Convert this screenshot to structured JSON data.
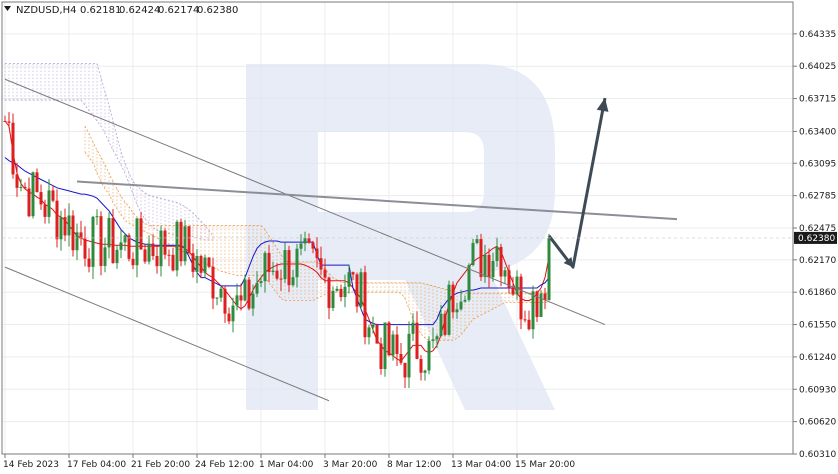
{
  "header": {
    "symbol": "NZDUSD,H4",
    "open": "0.62181",
    "high": "0.62424",
    "low": "0.62174",
    "close": "0.62380",
    "menu_icon": "triangle-down-icon"
  },
  "colors": {
    "bull": "#2e8b3d",
    "bear": "#dd1f1f",
    "tenkan": "#e01010",
    "kijun": "#1515d0",
    "kumo_bull": "#e88a2e",
    "kumo_bear": "#a890d0",
    "trendline": "#7a7a7a",
    "resistance": "#8a8f96",
    "arrow": "#3e4a56",
    "price_tag": "#1a1a1a"
  },
  "chart_data": {
    "type": "candlestick",
    "symbol": "NZDUSD",
    "timeframe": "H4",
    "y_ticks": [
      "0.64335",
      "0.64025",
      "0.63715",
      "0.63400",
      "0.63095",
      "0.62785",
      "0.62475",
      "0.62170",
      "0.61860",
      "0.61550",
      "0.61240",
      "0.60930",
      "0.60620",
      "0.60310"
    ],
    "ylim": [
      0.6031,
      0.6464
    ],
    "x_ticks": [
      {
        "label": "14 Feb 2023",
        "index": 0
      },
      {
        "label": "17 Feb 04:00",
        "index": 16
      },
      {
        "label": "21 Feb 20:00",
        "index": 32
      },
      {
        "label": "24 Feb 12:00",
        "index": 48
      },
      {
        "label": "1 Mar 04:00",
        "index": 64
      },
      {
        "label": "3 Mar 20:00",
        "index": 80
      },
      {
        "label": "8 Mar 12:00",
        "index": 96
      },
      {
        "label": "13 Mar 04:00",
        "index": 112
      },
      {
        "label": "15 Mar 20:00",
        "index": 128
      }
    ],
    "current_price": "0.62380",
    "candle_count": 137,
    "series": [
      {
        "name": "Tenkan-sen",
        "values": [
          0.635,
          0.6345,
          0.632,
          0.63,
          0.629,
          0.6285,
          0.6282,
          0.628,
          0.6277,
          0.6275,
          0.627,
          0.6268,
          0.6265,
          0.626,
          0.6258,
          0.6255,
          0.625,
          0.6245,
          0.624,
          0.6238,
          0.6236,
          0.6235,
          0.6234,
          0.6233,
          0.6232,
          0.6232,
          0.6232,
          0.6231,
          0.6231,
          0.6231,
          0.6231,
          0.623,
          0.623,
          0.623,
          0.623,
          0.623,
          0.623,
          0.623,
          0.623,
          0.623,
          0.623,
          0.623,
          0.623,
          0.623,
          0.623,
          0.6228,
          0.6225,
          0.622,
          0.6215,
          0.621,
          0.6205,
          0.6202,
          0.62,
          0.6196,
          0.6192,
          0.6188,
          0.6183,
          0.6178,
          0.6173,
          0.617,
          0.6173,
          0.618,
          0.6188,
          0.6195,
          0.62,
          0.6205,
          0.6208,
          0.621,
          0.6212,
          0.6213,
          0.6213,
          0.6213,
          0.6213,
          0.6213,
          0.6213,
          0.6212,
          0.621,
          0.6208,
          0.6205,
          0.62,
          0.6197,
          0.6197,
          0.6197,
          0.6197,
          0.6197,
          0.6197,
          0.6195,
          0.619,
          0.6185,
          0.618,
          0.617,
          0.616,
          0.615,
          0.614,
          0.6135,
          0.613,
          0.6128,
          0.6125,
          0.6122,
          0.612,
          0.6125,
          0.613,
          0.6135,
          0.6135,
          0.6135,
          0.613,
          0.6128,
          0.613,
          0.6135,
          0.6145,
          0.616,
          0.6175,
          0.6185,
          0.6195,
          0.62,
          0.6205,
          0.621,
          0.6215,
          0.6218,
          0.622,
          0.6222,
          0.6225,
          0.6228,
          0.623,
          0.6225,
          0.6215,
          0.6205,
          0.6195,
          0.6185,
          0.618,
          0.6178,
          0.6178,
          0.618,
          0.6185,
          0.619,
          0.62,
          0.622
        ]
      },
      {
        "name": "Kijun-sen",
        "values": [
          0.6315,
          0.6312,
          0.631,
          0.6308,
          0.6305,
          0.6302,
          0.63,
          0.6298,
          0.6296,
          0.6294,
          0.6292,
          0.629,
          0.6288,
          0.6286,
          0.6285,
          0.6284,
          0.6283,
          0.6282,
          0.6281,
          0.628,
          0.628,
          0.6279,
          0.6278,
          0.6276,
          0.6272,
          0.6268,
          0.6264,
          0.6258,
          0.6252,
          0.6246,
          0.6242,
          0.6238,
          0.6236,
          0.6234,
          0.6233,
          0.6232,
          0.6232,
          0.6231,
          0.6231,
          0.6231,
          0.6231,
          0.6231,
          0.6231,
          0.6231,
          0.6231,
          0.6228,
          0.622,
          0.6212,
          0.6205,
          0.62,
          0.62,
          0.6198,
          0.6196,
          0.6194,
          0.6192,
          0.6192,
          0.6192,
          0.6192,
          0.6192,
          0.6192,
          0.62,
          0.621,
          0.622,
          0.6228,
          0.6232,
          0.6234,
          0.6235,
          0.6235,
          0.6235,
          0.6234,
          0.6234,
          0.6234,
          0.6234,
          0.6234,
          0.6234,
          0.6234,
          0.6234,
          0.6234,
          0.6222,
          0.6212,
          0.6212,
          0.6212,
          0.6212,
          0.6212,
          0.6212,
          0.6212,
          0.6212,
          0.619,
          0.618,
          0.617,
          0.616,
          0.6158,
          0.6156,
          0.6155,
          0.6155,
          0.6155,
          0.6155,
          0.6155,
          0.6155,
          0.6155,
          0.6155,
          0.6155,
          0.6155,
          0.6155,
          0.6155,
          0.6155,
          0.6155,
          0.6155,
          0.616,
          0.617,
          0.6175,
          0.618,
          0.6183,
          0.6185,
          0.6186,
          0.6187,
          0.6188,
          0.6188,
          0.6189,
          0.619,
          0.619,
          0.619,
          0.619,
          0.619,
          0.619,
          0.619,
          0.619,
          0.619,
          0.619,
          0.619,
          0.619,
          0.619,
          0.619,
          0.619,
          0.6193,
          0.6195,
          0.62
        ]
      }
    ],
    "kumo_clouds": [
      {
        "name": "Kumo (bearish)",
        "color": "kumo_bear",
        "start_index": 0,
        "upper": [
          0.6405,
          0.6405,
          0.6405,
          0.6405,
          0.6405,
          0.6405,
          0.6405,
          0.6405,
          0.6405,
          0.6405,
          0.6405,
          0.6405,
          0.6405,
          0.6405,
          0.6405,
          0.6405,
          0.6405,
          0.6405,
          0.6405,
          0.6405,
          0.6405,
          0.6405,
          0.6405,
          0.6405,
          0.6392,
          0.6378,
          0.6365,
          0.635,
          0.6335,
          0.632,
          0.631,
          0.63,
          0.6292,
          0.6288,
          0.6284,
          0.6281,
          0.6279,
          0.6278,
          0.6277,
          0.6276,
          0.6275,
          0.6274,
          0.6273,
          0.6272,
          0.627,
          0.6268,
          0.6265,
          0.6262,
          0.6258,
          0.6254,
          0.625,
          0.6245,
          0.624
        ],
        "lower": [
          0.637,
          0.637,
          0.637,
          0.637,
          0.637,
          0.637,
          0.637,
          0.637,
          0.637,
          0.637,
          0.637,
          0.637,
          0.637,
          0.637,
          0.637,
          0.637,
          0.637,
          0.637,
          0.637,
          0.637,
          0.6365,
          0.636,
          0.6355,
          0.635,
          0.6345,
          0.6338,
          0.633,
          0.6322,
          0.6315,
          0.6308,
          0.63,
          0.629,
          0.628,
          0.627,
          0.6262,
          0.6256,
          0.6252,
          0.6248,
          0.6245,
          0.6244,
          0.6243,
          0.6242,
          0.6241,
          0.624,
          0.624,
          0.624,
          0.624,
          0.6239,
          0.6238,
          0.6237,
          0.6236,
          0.6236,
          0.6236
        ]
      },
      {
        "name": "Kumo (bullish)",
        "color": "kumo_bull",
        "start_index": 20,
        "upper": [
          0.6345,
          0.6338,
          0.633,
          0.6322,
          0.6315,
          0.6308,
          0.63,
          0.6292,
          0.6285,
          0.6278,
          0.6272,
          0.6268,
          0.6262,
          0.6258,
          0.6255,
          0.6252,
          0.625,
          0.625,
          0.625,
          0.625,
          0.625,
          0.625,
          0.625,
          0.625,
          0.625,
          0.625,
          0.625,
          0.625,
          0.625,
          0.625,
          0.625,
          0.625,
          0.625,
          0.625,
          0.625,
          0.625,
          0.625,
          0.625,
          0.625,
          0.625,
          0.625,
          0.625,
          0.625,
          0.625,
          0.625,
          0.6246,
          0.624,
          0.6234,
          0.6228,
          0.6222,
          0.6216,
          0.6215,
          0.6215,
          0.6215,
          0.6215,
          0.6215,
          0.6215,
          0.6215,
          0.6215,
          0.6212,
          0.6208,
          0.6204,
          0.62,
          0.6198,
          0.6196,
          0.6195,
          0.6195,
          0.6195,
          0.6195,
          0.6195,
          0.6195,
          0.6195,
          0.6195,
          0.6195,
          0.6195,
          0.6195,
          0.6195,
          0.6195,
          0.6195,
          0.6195,
          0.6195,
          0.6195,
          0.6195,
          0.6195,
          0.6195,
          0.6194,
          0.6193,
          0.6192,
          0.6191,
          0.619,
          0.6189,
          0.6188,
          0.6187,
          0.6186,
          0.6185,
          0.6185,
          0.6185,
          0.6185,
          0.6185,
          0.6185,
          0.6185,
          0.6185,
          0.6185,
          0.6185,
          0.6185,
          0.6185,
          0.6185,
          0.6185,
          0.6185,
          0.6185,
          0.6185,
          0.6185,
          0.6185,
          0.6185,
          0.6185,
          0.6185,
          0.6185
        ],
        "lower": [
          0.632,
          0.6315,
          0.631,
          0.63,
          0.6292,
          0.6285,
          0.628,
          0.6272,
          0.6266,
          0.626,
          0.6255,
          0.6252,
          0.625,
          0.6248,
          0.6246,
          0.6244,
          0.6242,
          0.624,
          0.6238,
          0.6236,
          0.6234,
          0.6232,
          0.623,
          0.6228,
          0.6226,
          0.6224,
          0.6222,
          0.622,
          0.6218,
          0.6216,
          0.6214,
          0.6212,
          0.621,
          0.6208,
          0.6206,
          0.6205,
          0.6204,
          0.6203,
          0.6202,
          0.6202,
          0.6202,
          0.6202,
          0.6202,
          0.6202,
          0.6202,
          0.62,
          0.6195,
          0.619,
          0.6185,
          0.618,
          0.6178,
          0.6178,
          0.6178,
          0.6178,
          0.6178,
          0.6178,
          0.6178,
          0.6178,
          0.618,
          0.6182,
          0.6184,
          0.6186,
          0.6186,
          0.6186,
          0.6186,
          0.6186,
          0.6186,
          0.6186,
          0.6186,
          0.6186,
          0.6186,
          0.6186,
          0.6186,
          0.6186,
          0.6186,
          0.6186,
          0.6186,
          0.6186,
          0.6186,
          0.6185,
          0.618,
          0.617,
          0.616,
          0.6152,
          0.6146,
          0.6142,
          0.614,
          0.614,
          0.614,
          0.614,
          0.614,
          0.614,
          0.614,
          0.6142,
          0.6145,
          0.615,
          0.6155,
          0.616,
          0.6162,
          0.6164,
          0.6166,
          0.6168,
          0.617,
          0.6172,
          0.6174,
          0.6176,
          0.6176,
          0.6176,
          0.6176,
          0.6176,
          0.6176,
          0.6176,
          0.6176,
          0.6176,
          0.6176,
          0.6176,
          0.6176
        ]
      }
    ],
    "drawings": {
      "lower_channel": [
        {
          "i": 0,
          "p": 0.633
        },
        {
          "i": 81,
          "p": 0.637
        }
      ],
      "trend_line": [
        {
          "i": 0,
          "p": 0.639
        },
        {
          "i": 150,
          "p": 0.6155
        }
      ],
      "resistance_line": [
        {
          "i": 18,
          "p": 0.6292
        },
        {
          "i": 168,
          "p": 0.6256
        }
      ],
      "support_channel": [
        {
          "i": 0,
          "p": 0.621
        },
        {
          "i": 81,
          "p": 0.6082
        }
      ],
      "forecast_arrow": [
        {
          "i": 136,
          "p": 0.624
        },
        {
          "i": 142,
          "p": 0.621
        },
        {
          "i": 150,
          "p": 0.6372
        }
      ]
    }
  }
}
